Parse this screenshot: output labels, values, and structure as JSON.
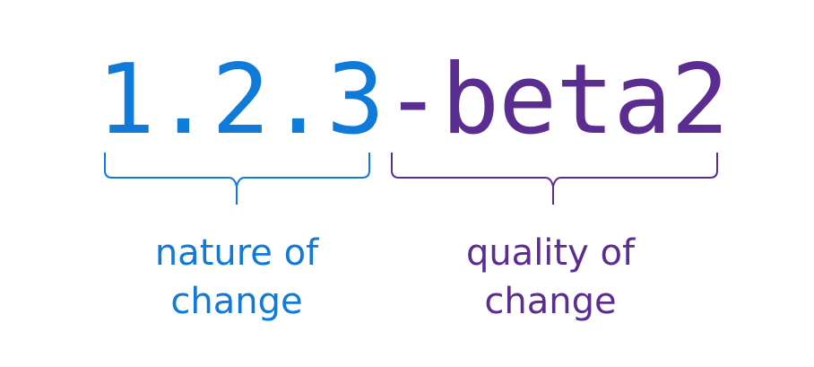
{
  "version": {
    "core": "1.2.3",
    "prerelease": "-beta2"
  },
  "labels": {
    "left": {
      "line1": "nature of",
      "line2": "change"
    },
    "right": {
      "line1": "quality of",
      "line2": "change"
    }
  },
  "colors": {
    "nature": "#0f7ad8",
    "quality": "#5c2d91"
  }
}
